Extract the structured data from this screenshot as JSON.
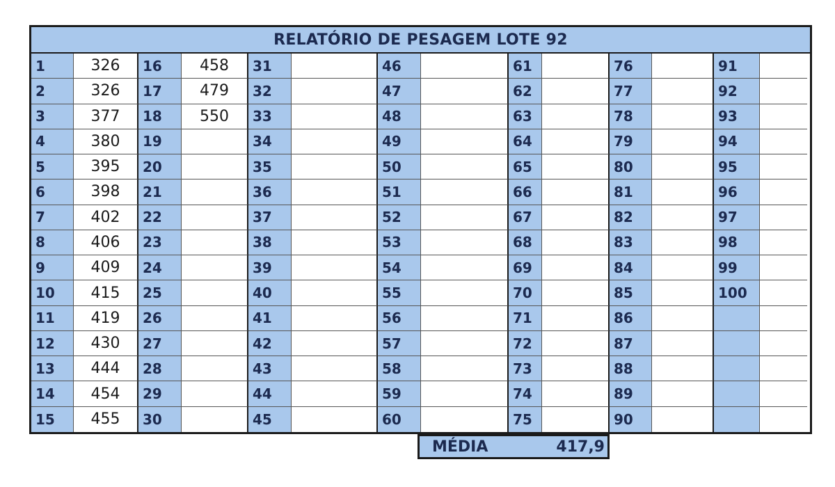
{
  "title": "RELATÓRIO DE PESAGEM LOTE 92",
  "columns": [
    {
      "numbers": [
        "1",
        "2",
        "3",
        "4",
        "5",
        "6",
        "7",
        "8",
        "9",
        "10",
        "11",
        "12",
        "13",
        "14",
        "15"
      ],
      "values": [
        "326",
        "326",
        "377",
        "380",
        "395",
        "398",
        "402",
        "406",
        "409",
        "415",
        "419",
        "430",
        "444",
        "454",
        "455"
      ]
    },
    {
      "numbers": [
        "16",
        "17",
        "18",
        "19",
        "20",
        "21",
        "22",
        "23",
        "24",
        "25",
        "26",
        "27",
        "28",
        "29",
        "30"
      ],
      "values": [
        "458",
        "479",
        "550",
        "",
        "",
        "",
        "",
        "",
        "",
        "",
        "",
        "",
        "",
        "",
        ""
      ]
    },
    {
      "numbers": [
        "31",
        "32",
        "33",
        "34",
        "35",
        "36",
        "37",
        "38",
        "39",
        "40",
        "41",
        "42",
        "43",
        "44",
        "45"
      ],
      "values": [
        "",
        "",
        "",
        "",
        "",
        "",
        "",
        "",
        "",
        "",
        "",
        "",
        "",
        "",
        ""
      ]
    },
    {
      "numbers": [
        "46",
        "47",
        "48",
        "49",
        "50",
        "51",
        "52",
        "53",
        "54",
        "55",
        "56",
        "57",
        "58",
        "59",
        "60"
      ],
      "values": [
        "",
        "",
        "",
        "",
        "",
        "",
        "",
        "",
        "",
        "",
        "",
        "",
        "",
        "",
        ""
      ]
    },
    {
      "numbers": [
        "61",
        "62",
        "63",
        "64",
        "65",
        "66",
        "67",
        "68",
        "69",
        "70",
        "71",
        "72",
        "73",
        "74",
        "75"
      ],
      "values": [
        "",
        "",
        "",
        "",
        "",
        "",
        "",
        "",
        "",
        "",
        "",
        "",
        "",
        "",
        ""
      ]
    },
    {
      "numbers": [
        "76",
        "77",
        "78",
        "79",
        "80",
        "81",
        "82",
        "83",
        "84",
        "85",
        "86",
        "87",
        "88",
        "89",
        "90"
      ],
      "values": [
        "",
        "",
        "",
        "",
        "",
        "",
        "",
        "",
        "",
        "",
        "",
        "",
        "",
        "",
        ""
      ]
    },
    {
      "numbers": [
        "91",
        "92",
        "93",
        "94",
        "95",
        "96",
        "97",
        "98",
        "99",
        "100",
        "",
        "",
        "",
        "",
        ""
      ],
      "values": [
        "",
        "",
        "",
        "",
        "",
        "",
        "",
        "",
        "",
        "",
        "",
        "",
        "",
        "",
        ""
      ]
    }
  ],
  "media": {
    "label": "MÉDIA",
    "value": "417,9"
  },
  "colors": {
    "header_fill": "#a9c8ec",
    "text_dark_blue": "#1c2a4f",
    "border": "#1a1a1a"
  }
}
